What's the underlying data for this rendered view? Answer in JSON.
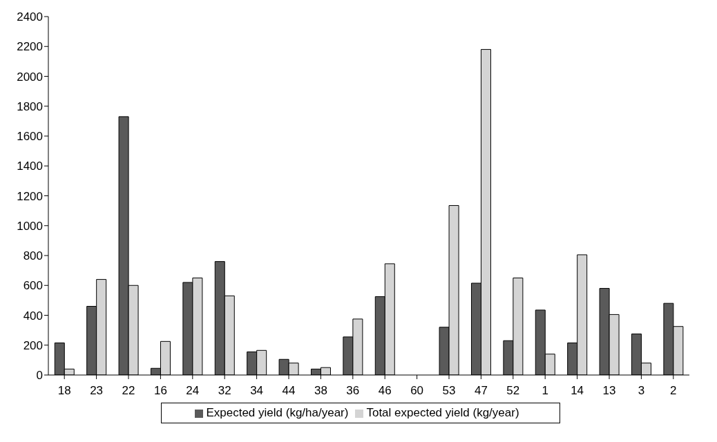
{
  "chart_data": {
    "type": "bar",
    "categories": [
      "18",
      "23",
      "22",
      "16",
      "24",
      "32",
      "34",
      "44",
      "38",
      "36",
      "46",
      "60",
      "53",
      "47",
      "52",
      "1",
      "14",
      "13",
      "3",
      "2"
    ],
    "series": [
      {
        "name": "Expected yield (kg/ha/year)",
        "color": "#5a5a5a",
        "values": [
          215,
          460,
          1730,
          45,
          620,
          760,
          155,
          105,
          40,
          255,
          525,
          0,
          320,
          615,
          230,
          435,
          215,
          580,
          275,
          480
        ]
      },
      {
        "name": "Total expected yield (kg/year)",
        "color": "#d4d4d4",
        "values": [
          40,
          640,
          600,
          225,
          650,
          530,
          165,
          80,
          50,
          375,
          745,
          0,
          1135,
          2180,
          650,
          140,
          805,
          405,
          80,
          325
        ]
      }
    ],
    "ylim": [
      0,
      2400
    ],
    "yticks": [
      0,
      200,
      400,
      600,
      800,
      1000,
      1200,
      1400,
      1600,
      1800,
      2000,
      2200,
      2400
    ],
    "grid": false,
    "legend": "bottom"
  }
}
